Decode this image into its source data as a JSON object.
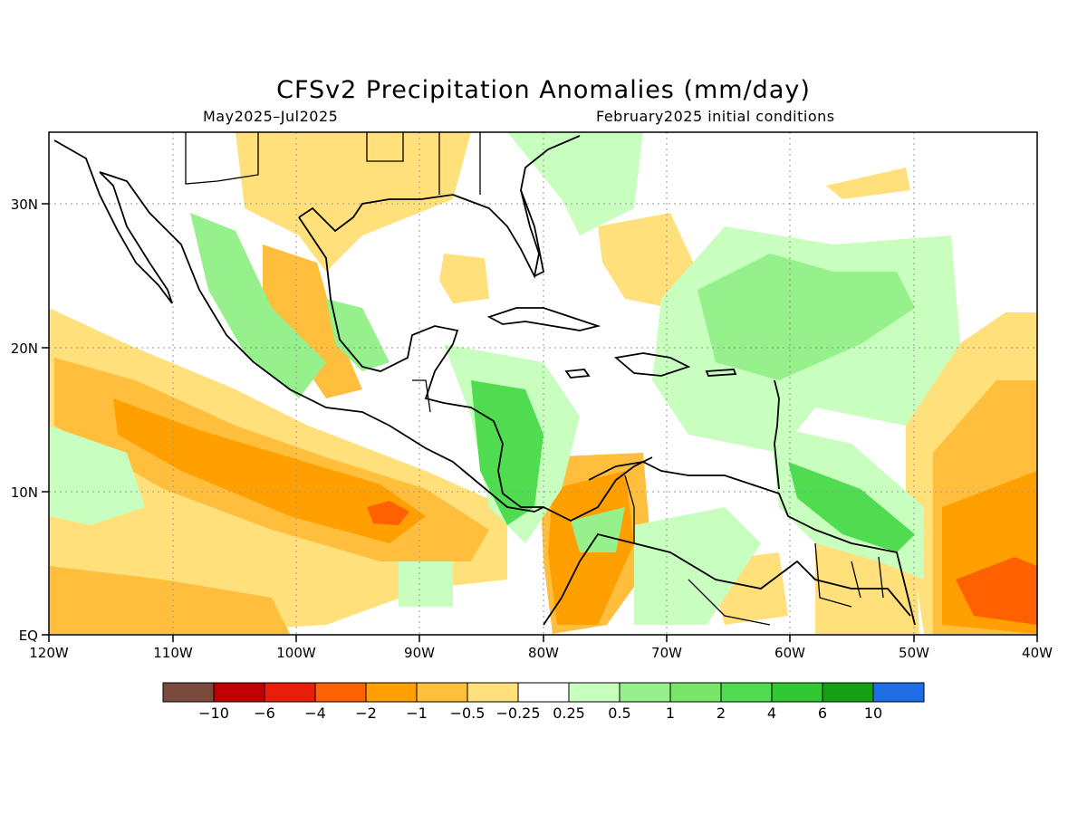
{
  "title": "CFSv2 Precipitation Anomalies (mm/day)",
  "period": "May2025–Jul2025",
  "initial_conditions": "February2025 initial conditions",
  "lat_labels": [
    "30N",
    "20N",
    "10N",
    "EQ"
  ],
  "lon_labels": [
    "120W",
    "110W",
    "100W",
    "90W",
    "80W",
    "70W",
    "60W",
    "50W",
    "40W"
  ],
  "colorbar": {
    "colors": [
      "#7a4a3c",
      "#c00000",
      "#e61e0a",
      "#ff6000",
      "#ffa000",
      "#ffbe3c",
      "#ffe07a",
      "#ffffff",
      "#c8ffbe",
      "#96f08c",
      "#78e668",
      "#50dc50",
      "#32c832",
      "#14a014",
      "#1e6ee6"
    ],
    "labels": [
      "−10",
      "−6",
      "−4",
      "−2",
      "−1",
      "−0.5",
      "−0.25",
      "0.25",
      "0.5",
      "1",
      "2",
      "4",
      "6",
      "10"
    ]
  }
}
